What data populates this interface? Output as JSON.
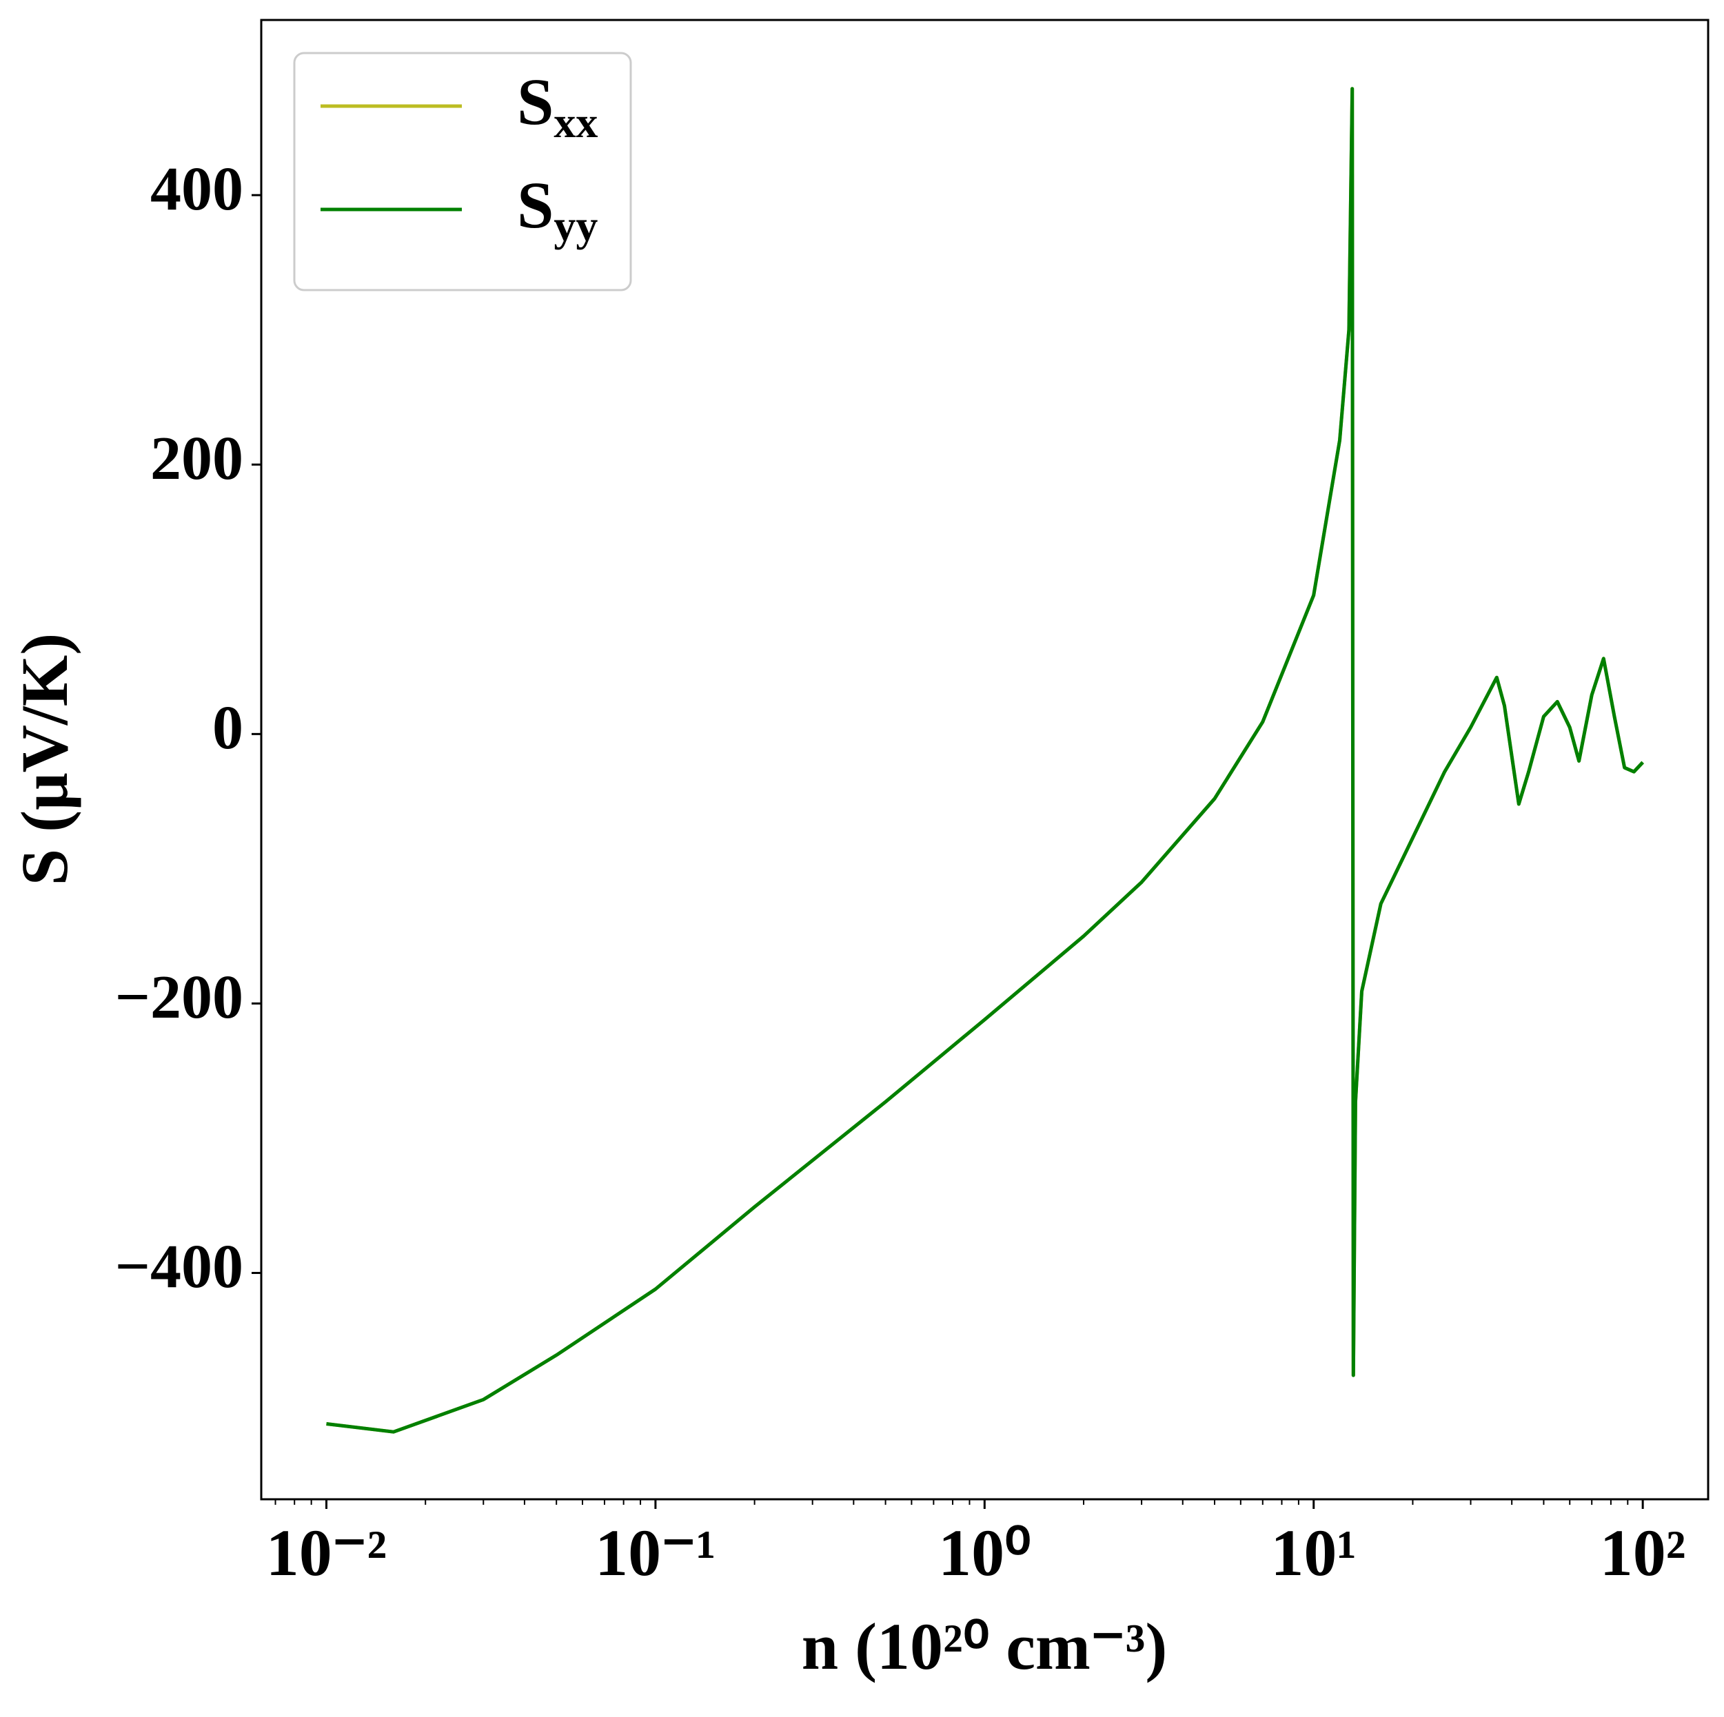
{
  "chart_data": {
    "type": "line",
    "xlabel": "n (10²⁰ cm⁻³)",
    "ylabel": "S (μV/K)",
    "xscale": "log",
    "x": [
      0.01,
      0.016,
      0.03,
      0.05,
      0.1,
      0.2,
      0.5,
      1,
      2,
      3,
      5,
      7,
      10,
      12,
      12.8,
      13.1,
      13.2,
      13.4,
      14,
      16,
      20,
      25,
      30,
      36,
      38,
      42,
      45,
      50,
      55,
      60,
      64,
      70,
      76,
      82,
      88,
      94,
      100
    ],
    "series": [
      {
        "name": "Sxx",
        "color": "#bcbd22",
        "values": [
          -512,
          -518,
          -494,
          -461,
          -412,
          -351,
          -273,
          -212,
          -150,
          -110,
          -48,
          9,
          103,
          218,
          300,
          479,
          -476,
          -273,
          -191,
          -126,
          -77,
          -28,
          5,
          42,
          21,
          -52,
          -28,
          13,
          24,
          5,
          -20,
          29,
          56,
          13,
          -25,
          -28,
          -21
        ]
      },
      {
        "name": "Syy",
        "color": "#008000",
        "values": [
          -512,
          -518,
          -494,
          -461,
          -412,
          -351,
          -273,
          -212,
          -150,
          -110,
          -48,
          9,
          103,
          218,
          300,
          479,
          -476,
          -273,
          -191,
          -126,
          -77,
          -28,
          5,
          42,
          21,
          -52,
          -28,
          13,
          24,
          5,
          -20,
          29,
          56,
          13,
          -25,
          -28,
          -21
        ]
      }
    ],
    "xlim": [
      0.00634,
      158
    ],
    "ylim": [
      -568,
      530
    ],
    "xticks": [
      {
        "value": 0.01,
        "label": "10⁻²"
      },
      {
        "value": 0.1,
        "label": "10⁻¹"
      },
      {
        "value": 1,
        "label": "10⁰"
      },
      {
        "value": 10,
        "label": "10¹"
      },
      {
        "value": 100,
        "label": "10²"
      }
    ],
    "yticks": [
      {
        "value": -400,
        "label": "−400"
      },
      {
        "value": -200,
        "label": "−200"
      },
      0,
      200,
      400
    ],
    "legend": "upper left"
  }
}
